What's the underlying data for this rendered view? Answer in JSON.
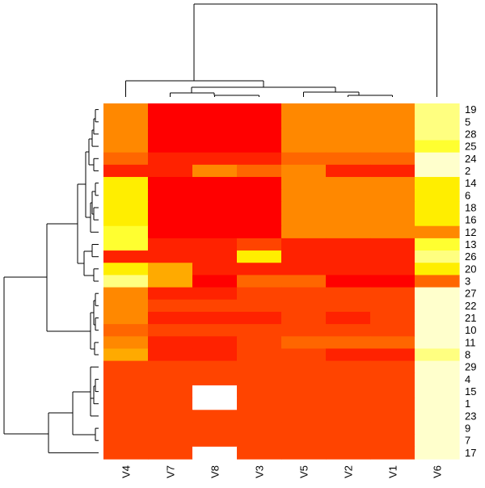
{
  "chart_data": {
    "type": "heatmap",
    "title": "",
    "xlabel": "",
    "ylabel": "",
    "columns": [
      "V4",
      "V7",
      "V8",
      "V3",
      "V5",
      "V2",
      "V1",
      "V6"
    ],
    "rows": [
      "19",
      "5",
      "28",
      "25",
      "24",
      "2",
      "14",
      "6",
      "18",
      "16",
      "12",
      "13",
      "26",
      "20",
      "3",
      "27",
      "22",
      "21",
      "10",
      "11",
      "8",
      "29",
      "4",
      "15",
      "1",
      "23",
      "9",
      "7",
      "17"
    ],
    "color_scale": [
      "#ff0000",
      "#ff2200",
      "#ff4400",
      "#ff6600",
      "#ff8800",
      "#ffaa00",
      "#ffcc00",
      "#ffee00",
      "#ffff30",
      "#ffff80",
      "#ffffcc"
    ],
    "missing_color": "#ffffff",
    "matrix": [
      [
        4,
        0,
        0,
        0,
        4,
        4,
        4,
        9
      ],
      [
        4,
        0,
        0,
        0,
        4,
        4,
        4,
        9
      ],
      [
        4,
        0,
        0,
        0,
        4,
        4,
        4,
        9
      ],
      [
        4,
        0,
        0,
        0,
        4,
        4,
        4,
        8
      ],
      [
        3,
        1,
        1,
        1,
        3,
        3,
        3,
        10
      ],
      [
        1,
        1,
        4,
        3,
        4,
        1,
        1,
        10
      ],
      [
        7,
        0,
        0,
        0,
        4,
        4,
        4,
        7
      ],
      [
        7,
        0,
        0,
        0,
        4,
        4,
        4,
        7
      ],
      [
        7,
        0,
        0,
        0,
        4,
        4,
        4,
        7
      ],
      [
        7,
        0,
        0,
        0,
        4,
        4,
        4,
        7
      ],
      [
        8,
        0,
        0,
        0,
        4,
        4,
        4,
        4
      ],
      [
        8,
        1,
        1,
        2,
        1,
        1,
        1,
        8
      ],
      [
        1,
        1,
        1,
        7,
        1,
        1,
        1,
        9
      ],
      [
        7,
        5,
        1,
        1,
        1,
        1,
        1,
        7
      ],
      [
        9,
        5,
        0,
        3,
        3,
        0,
        0,
        3
      ],
      [
        4,
        1,
        1,
        2,
        2,
        2,
        2,
        10
      ],
      [
        4,
        2,
        2,
        2,
        2,
        2,
        2,
        10
      ],
      [
        4,
        1,
        1,
        1,
        2,
        1,
        2,
        10
      ],
      [
        3,
        2,
        2,
        2,
        2,
        2,
        2,
        10
      ],
      [
        4,
        1,
        1,
        2,
        3,
        3,
        3,
        10
      ],
      [
        5,
        1,
        1,
        2,
        2,
        1,
        1,
        9
      ],
      [
        2,
        2,
        2,
        2,
        2,
        2,
        2,
        10
      ],
      [
        2,
        2,
        2,
        2,
        2,
        2,
        2,
        10
      ],
      [
        2,
        2,
        null,
        2,
        2,
        2,
        2,
        10
      ],
      [
        2,
        2,
        null,
        2,
        2,
        2,
        2,
        10
      ],
      [
        2,
        2,
        2,
        2,
        2,
        2,
        2,
        10
      ],
      [
        2,
        2,
        2,
        2,
        2,
        2,
        2,
        10
      ],
      [
        2,
        2,
        2,
        2,
        2,
        2,
        2,
        10
      ],
      [
        2,
        2,
        null,
        2,
        2,
        2,
        2,
        10
      ]
    ],
    "col_dendrogram": true,
    "row_dendrogram": true,
    "legend": "none",
    "grid": false
  }
}
